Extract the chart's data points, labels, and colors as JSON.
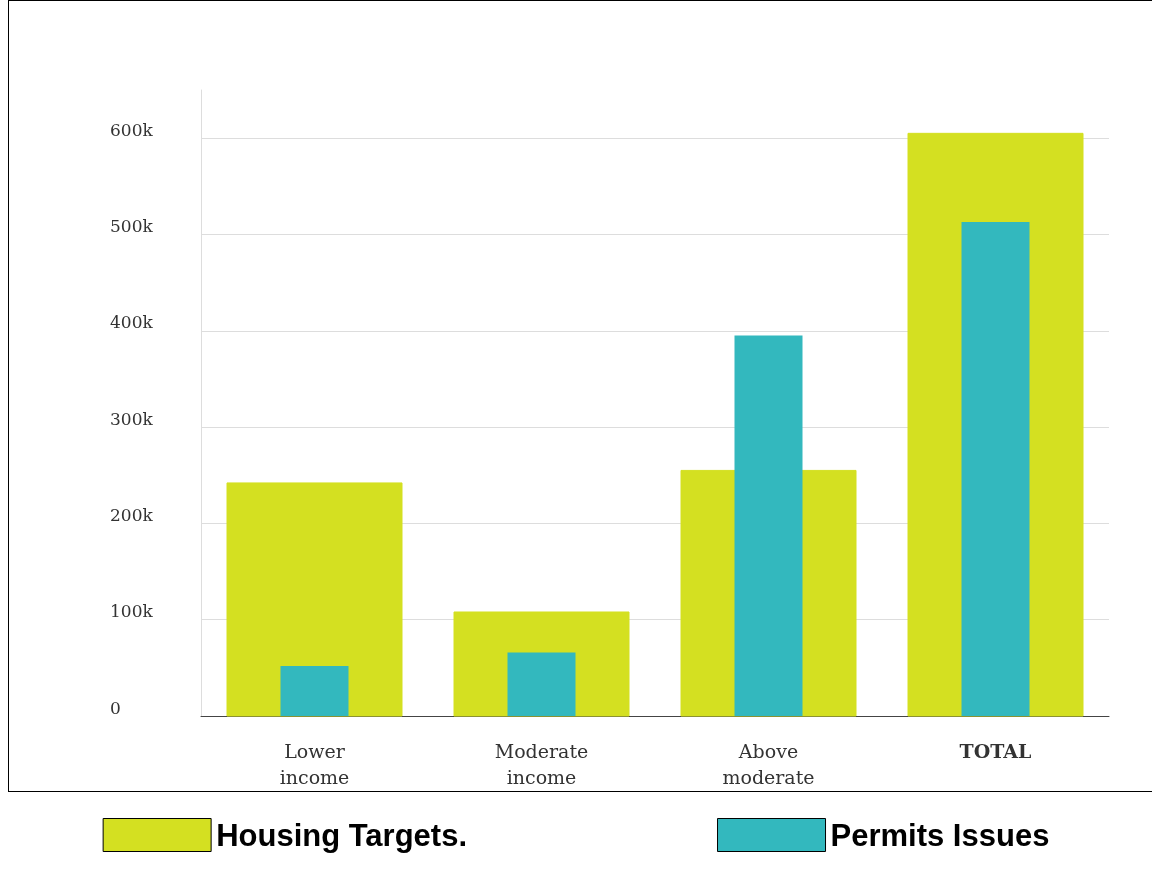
{
  "chart_data": {
    "type": "bar",
    "categories": [
      "Lower\nincome",
      "Moderate\nincome",
      "Above\nmoderate",
      "TOTAL"
    ],
    "series": [
      {
        "name": "Housing Targets.",
        "color": "#d4e021",
        "values": [
          242000,
          108000,
          255000,
          605000
        ]
      },
      {
        "name": "Permits Issues",
        "color": "#33b8be",
        "values": [
          52000,
          66000,
          395000,
          513000
        ]
      }
    ],
    "ylim": [
      0,
      650000
    ],
    "yticks": [
      0,
      {
        "value": 100000,
        "label": "100k"
      },
      {
        "value": 200000,
        "label": "200k"
      },
      {
        "value": 300000,
        "label": "300k"
      },
      {
        "value": 400000,
        "label": "400k"
      },
      {
        "value": 500000,
        "label": "500k"
      },
      {
        "value": 600000,
        "label": "600k"
      }
    ],
    "grid": "y",
    "legend": "bottom"
  }
}
